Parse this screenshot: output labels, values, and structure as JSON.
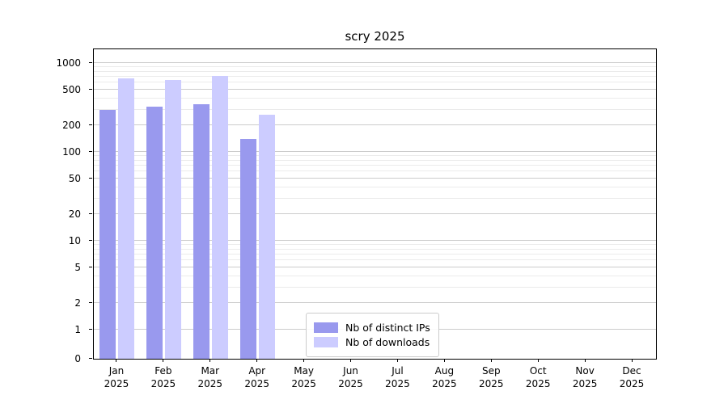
{
  "chart_data": {
    "type": "bar",
    "title": "scry 2025",
    "scale": "symlog",
    "grid": true,
    "categories": [
      "Jan",
      "Feb",
      "Mar",
      "Apr",
      "May",
      "Jun",
      "Jul",
      "Aug",
      "Sep",
      "Oct",
      "Nov",
      "Dec"
    ],
    "category_year": "2025",
    "series": [
      {
        "name": "Nb of distinct IPs",
        "color": "#9999ee",
        "values": [
          300,
          320,
          345,
          140,
          0,
          0,
          0,
          0,
          0,
          0,
          0,
          0
        ]
      },
      {
        "name": "Nb of downloads",
        "color": "#ccccff",
        "values": [
          670,
          640,
          710,
          260,
          0,
          0,
          0,
          0,
          0,
          0,
          0,
          0
        ]
      }
    ],
    "y_ticks": [
      0,
      1,
      2,
      5,
      10,
      20,
      50,
      100,
      200,
      500,
      1000
    ],
    "ylim": [
      0,
      1000
    ],
    "legend_position": "lower-center-inside"
  }
}
